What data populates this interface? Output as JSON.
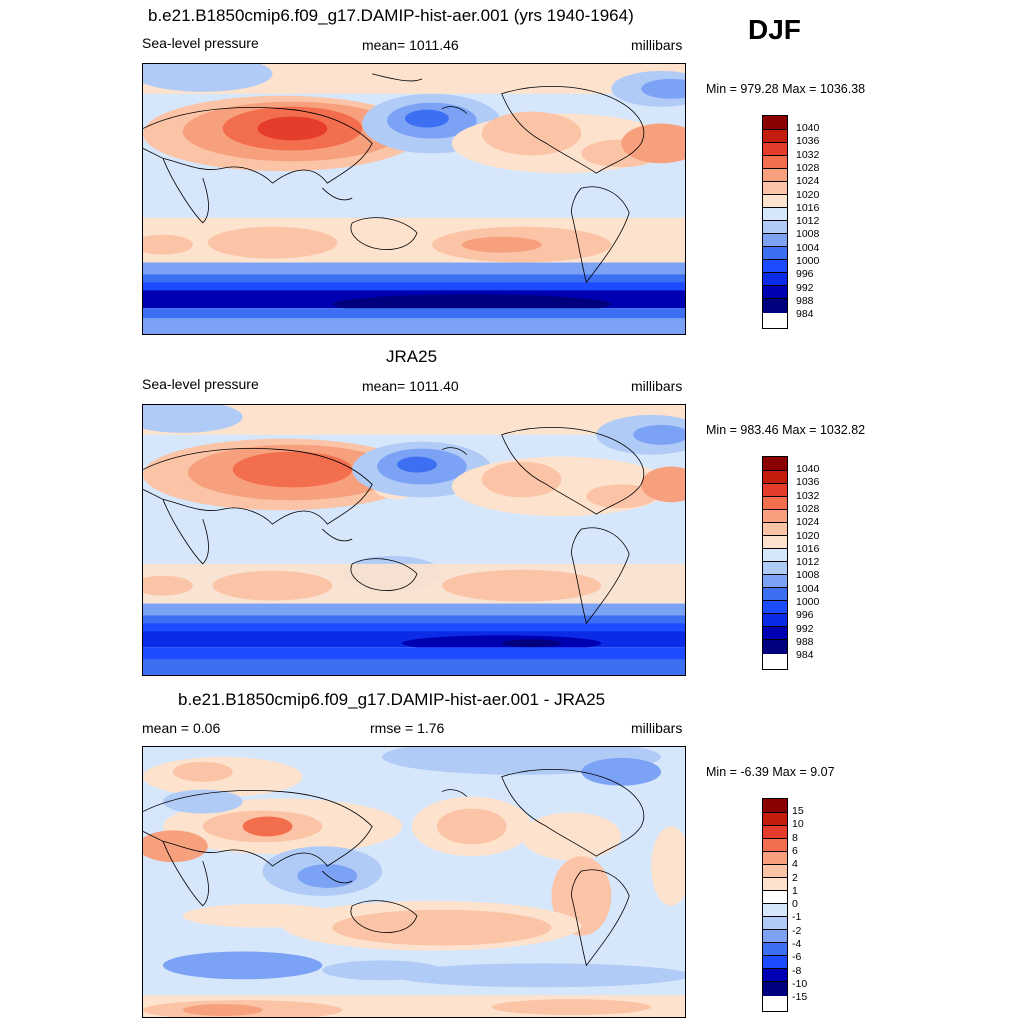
{
  "season": "DJF",
  "colors": {
    "slp_scale": [
      "#00007f",
      "#0000b3",
      "#0c2be6",
      "#1d4bff",
      "#3c6ff2",
      "#7ba2f5",
      "#b1cbf7",
      "#d6e6fb",
      "#fde2cd",
      "#fbc4a6",
      "#f7a07e",
      "#f26e4d",
      "#e63c2b",
      "#c41d0d",
      "#8b0000"
    ],
    "diff_scale": [
      "#00007f",
      "#0000b3",
      "#0c2be6",
      "#1d4bff",
      "#3c6ff2",
      "#7ba2f5",
      "#b1cbf7",
      "#d6e6fb",
      "#fde2cd",
      "#fbc4a6",
      "#f7a07e",
      "#f26e4d",
      "#e63c2b",
      "#c41d0d",
      "#8b0000"
    ]
  },
  "panels": [
    {
      "title": "b.e21.B1850cmip6.f09_g17.DAMIP-hist-aer.001 (yrs 1940-1964)",
      "left_label": "Sea-level pressure",
      "center_label": "mean= 1011.46",
      "right_label": "millibars",
      "minmax": "Min = 979.28 Max = 1036.38",
      "colorbar_labels": [
        "1040",
        "1036",
        "1032",
        "1028",
        "1024",
        "1020",
        "1016",
        "1012",
        "1008",
        "1004",
        "1000",
        "996",
        "992",
        "988",
        "984"
      ]
    },
    {
      "title": "JRA25",
      "left_label": "Sea-level pressure",
      "center_label": "mean= 1011.40",
      "right_label": "millibars",
      "minmax": "Min = 983.46 Max = 1032.82",
      "colorbar_labels": [
        "1040",
        "1036",
        "1032",
        "1028",
        "1024",
        "1020",
        "1016",
        "1012",
        "1008",
        "1004",
        "1000",
        "996",
        "992",
        "988",
        "984"
      ]
    },
    {
      "title": "b.e21.B1850cmip6.f09_g17.DAMIP-hist-aer.001 - JRA25",
      "left_label": "mean =   0.06",
      "center_label": "rmse =   1.76",
      "right_label": "millibars",
      "minmax": "Min =  -6.39 Max =   9.07",
      "colorbar_labels": [
        "15",
        "10",
        "8",
        "6",
        "4",
        "2",
        "1",
        "0",
        "-1",
        "-2",
        "-4",
        "-6",
        "-8",
        "-10",
        "-15"
      ]
    }
  ]
}
